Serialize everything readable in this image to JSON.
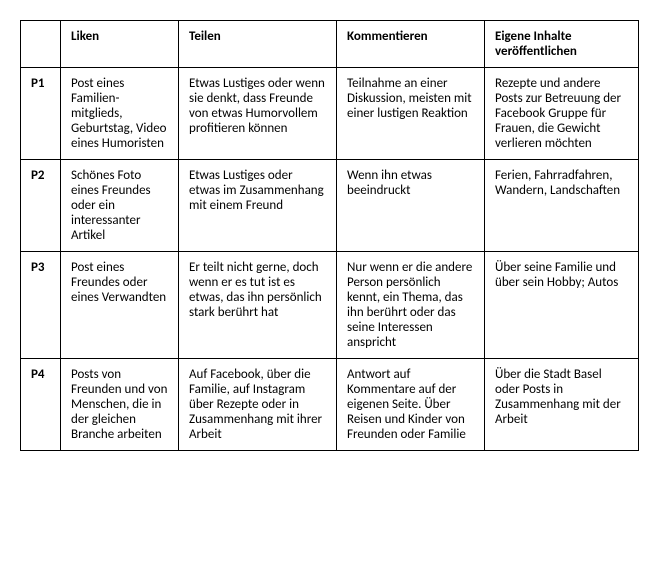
{
  "table": {
    "headers": [
      "",
      "Liken",
      "Teilen",
      "Kommentieren",
      "Eigene Inhalte veröffentlichen"
    ],
    "rows": [
      {
        "id": "P1",
        "cells": [
          "Post eines Familien-mitglieds, Geburtstag, Video eines Humoristen",
          "Etwas Lustiges oder wenn sie denkt, dass Freunde von etwas Humorvollem profitieren können",
          "Teilnahme an einer Diskussion, meisten mit einer lustigen Reaktion",
          "Rezepte und andere Posts zur Betreuung der Facebook Gruppe für Frauen, die Gewicht verlieren möchten"
        ]
      },
      {
        "id": "P2",
        "cells": [
          "Schönes Foto eines Freundes oder ein interessanter Artikel",
          "Etwas Lustiges oder etwas im Zusammenhang mit einem Freund",
          "Wenn ihn etwas beeindruckt",
          "Ferien, Fahrradfahren, Wandern, Landschaften"
        ]
      },
      {
        "id": "P3",
        "cells": [
          "Post eines Freundes oder eines Verwandten",
          "Er teilt nicht gerne, doch wenn er es tut ist es etwas, das ihn persönlich stark berührt hat",
          "Nur wenn er die andere Person persönlich kennt, ein Thema, das ihn berührt oder das seine Interessen anspricht",
          "Über seine Familie und über sein Hobby; Autos"
        ]
      },
      {
        "id": "P4",
        "cells": [
          "Posts von Freunden und von Menschen, die in der gleichen Branche arbeiten",
          "Auf Facebook, über die Familie, auf Instagram über Rezepte oder in Zusammenhang mit ihrer Arbeit",
          "Antwort auf Kommentare auf der eigenen Seite. Über Reisen und Kinder von Freunden oder Familie",
          "Über die Stadt Basel oder Posts in Zusammenhang mit der Arbeit"
        ]
      }
    ]
  }
}
